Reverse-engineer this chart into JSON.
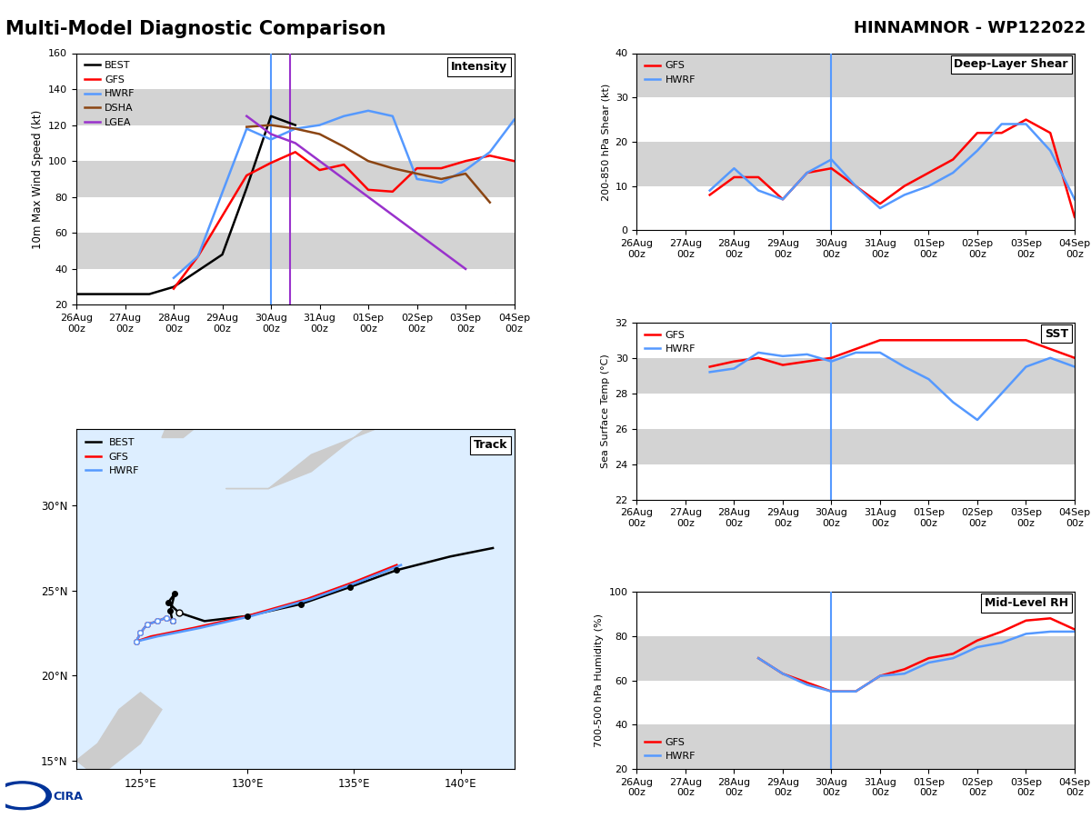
{
  "title_left": "Multi-Model Diagnostic Comparison",
  "title_right": "HINNAMNOR - WP122022",
  "intensity": {
    "ylim": [
      20,
      160
    ],
    "yticks": [
      20,
      40,
      60,
      80,
      100,
      120,
      140,
      160
    ],
    "ylabel": "10m Max Wind Speed (kt)",
    "vline_blue_x": 4.0,
    "vline_purple_x": 4.4,
    "BEST": [
      26,
      26,
      null,
      26,
      30,
      null,
      48,
      85,
      125,
      120,
      null,
      null,
      null,
      null,
      null,
      null,
      null,
      null,
      null
    ],
    "GFS": [
      null,
      null,
      null,
      null,
      29,
      47,
      null,
      92,
      99,
      105,
      95,
      98,
      84,
      83,
      96,
      96,
      100,
      103,
      100
    ],
    "HWRF": [
      null,
      null,
      null,
      null,
      35,
      47,
      null,
      118,
      112,
      118,
      120,
      125,
      128,
      125,
      90,
      88,
      95,
      105,
      123
    ],
    "DSHA": [
      null,
      null,
      null,
      null,
      null,
      null,
      null,
      119,
      120,
      118,
      115,
      108,
      100,
      96,
      93,
      90,
      93,
      77,
      null
    ],
    "LGEA": [
      null,
      null,
      null,
      null,
      null,
      null,
      null,
      125,
      115,
      110,
      100,
      90,
      80,
      70,
      60,
      50,
      40,
      null,
      null
    ],
    "x_vals": [
      0,
      0.5,
      1,
      1.5,
      2,
      2.5,
      3,
      3.5,
      4,
      4.5,
      5,
      5.5,
      6,
      6.5,
      7,
      7.5,
      8,
      8.5,
      9
    ]
  },
  "shear": {
    "ylim": [
      0,
      40
    ],
    "yticks": [
      0,
      10,
      20,
      30,
      40
    ],
    "ylabel": "200-850 hPa Shear (kt)",
    "vline_x": 4.0,
    "GFS": [
      null,
      null,
      null,
      8,
      12,
      12,
      7,
      13,
      14,
      10,
      6,
      10,
      13,
      16,
      22,
      22,
      25,
      22,
      3
    ],
    "HWRF": [
      null,
      null,
      null,
      9,
      14,
      9,
      7,
      13,
      16,
      10,
      5,
      8,
      10,
      13,
      18,
      24,
      24,
      18,
      7
    ],
    "x_vals": [
      0,
      0.5,
      1,
      1.5,
      2,
      2.5,
      3,
      3.5,
      4,
      4.5,
      5,
      5.5,
      6,
      6.5,
      7,
      7.5,
      8,
      8.5,
      9
    ]
  },
  "sst": {
    "ylim": [
      22,
      32
    ],
    "yticks": [
      22,
      24,
      26,
      28,
      30,
      32
    ],
    "ylabel": "Sea Surface Temp (°C)",
    "vline_x": 4.0,
    "GFS": [
      null,
      null,
      null,
      29.5,
      29.8,
      30.0,
      29.6,
      29.8,
      30.0,
      30.5,
      31.0,
      31.0,
      31.0,
      31.0,
      31.0,
      31.0,
      31.0,
      30.5,
      30.0
    ],
    "HWRF": [
      null,
      null,
      null,
      29.2,
      29.4,
      30.3,
      30.1,
      30.2,
      29.8,
      30.3,
      30.3,
      29.5,
      28.8,
      27.5,
      26.5,
      28.0,
      29.5,
      30.0,
      29.5
    ],
    "x_vals": [
      0,
      0.5,
      1,
      1.5,
      2,
      2.5,
      3,
      3.5,
      4,
      4.5,
      5,
      5.5,
      6,
      6.5,
      7,
      7.5,
      8,
      8.5,
      9
    ]
  },
  "rh": {
    "ylim": [
      20,
      100
    ],
    "yticks": [
      20,
      40,
      60,
      80,
      100
    ],
    "ylabel": "700-500 hPa Humidity (%)",
    "vline_x": 4.0,
    "GFS": [
      null,
      null,
      null,
      null,
      null,
      70,
      63,
      59,
      55,
      55,
      62,
      65,
      70,
      72,
      78,
      82,
      87,
      88,
      83
    ],
    "HWRF": [
      null,
      null,
      null,
      null,
      null,
      70,
      63,
      58,
      55,
      55,
      62,
      63,
      68,
      70,
      75,
      77,
      81,
      82,
      82
    ],
    "x_vals": [
      0,
      0.5,
      1,
      1.5,
      2,
      2.5,
      3,
      3.5,
      4,
      4.5,
      5,
      5.5,
      6,
      6.5,
      7,
      7.5,
      8,
      8.5,
      9
    ]
  },
  "track": {
    "xlim": [
      122.0,
      142.5
    ],
    "ylim": [
      14.5,
      34.5
    ],
    "xticks": [
      125,
      130,
      135,
      140
    ],
    "yticks": [
      15,
      20,
      25,
      30
    ],
    "BEST_lon": [
      126.5,
      126.4,
      126.6,
      126.3,
      126.8,
      128.0,
      130.0,
      132.5,
      134.8,
      137.0,
      139.5,
      141.5
    ],
    "BEST_lat": [
      23.2,
      23.8,
      24.8,
      24.3,
      23.7,
      23.2,
      23.5,
      24.2,
      25.2,
      26.2,
      27.0,
      27.5
    ],
    "BEST_open": [
      0,
      0,
      0,
      0,
      1,
      0,
      0,
      0,
      0,
      0,
      0,
      0
    ],
    "GFS_lon": [
      126.5,
      126.2,
      125.8,
      125.3,
      125.0,
      124.8,
      125.5,
      127.5,
      130.0,
      132.8,
      135.0,
      137.0
    ],
    "GFS_lat": [
      23.2,
      23.4,
      23.2,
      23.0,
      22.5,
      22.0,
      22.3,
      22.8,
      23.5,
      24.5,
      25.5,
      26.5
    ],
    "HWRF_lon": [
      126.5,
      126.2,
      125.8,
      125.3,
      125.0,
      124.8,
      125.8,
      127.8,
      130.2,
      133.0,
      135.2,
      137.2
    ],
    "HWRF_lat": [
      23.2,
      23.4,
      23.2,
      23.0,
      22.5,
      22.0,
      22.3,
      22.8,
      23.5,
      24.5,
      25.5,
      26.5
    ],
    "BEST_dots_lon": [
      126.5,
      126.4,
      126.6,
      126.3,
      126.8,
      130.0,
      132.5,
      134.8,
      137.0
    ],
    "BEST_dots_lat": [
      23.2,
      23.8,
      24.8,
      24.3,
      23.7,
      23.5,
      24.2,
      25.2,
      26.2
    ],
    "BEST_dots_open": [
      0,
      0,
      0,
      0,
      1,
      0,
      0,
      0,
      0
    ],
    "GFS_dots_lon": [
      126.5,
      126.2,
      125.8,
      125.3,
      125.0,
      124.8
    ],
    "GFS_dots_lat": [
      23.2,
      23.4,
      23.2,
      23.0,
      22.5,
      22.0
    ],
    "HWRF_dots_lon": [
      126.5,
      126.2,
      125.8,
      125.3,
      125.0,
      124.8
    ],
    "HWRF_dots_lat": [
      23.2,
      23.4,
      23.2,
      23.0,
      22.5,
      22.0
    ]
  },
  "colors": {
    "BEST": "#000000",
    "GFS": "#ff0000",
    "HWRF": "#5599ff",
    "DSHA": "#8B4513",
    "LGEA": "#9932CC",
    "vline_blue": "#5599ff",
    "vline_purple": "#9932CC",
    "band_gray": "#d3d3d3"
  },
  "x_tick_labels": [
    "26Aug\n00z",
    "27Aug\n00z",
    "28Aug\n00z",
    "29Aug\n00z",
    "30Aug\n00z",
    "31Aug\n00z",
    "01Sep\n00z",
    "02Sep\n00z",
    "03Sep\n00z",
    "04Sep\n00z"
  ],
  "x_tick_positions": [
    0,
    1,
    2,
    3,
    4,
    5,
    6,
    7,
    8,
    9
  ]
}
